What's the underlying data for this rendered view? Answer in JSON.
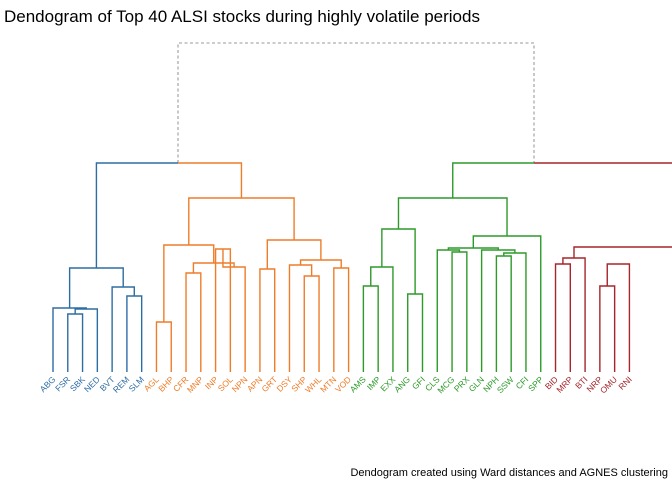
{
  "chart_data": {
    "type": "dendrogram",
    "title": "Dendogram of Top 40 ALSI stocks during highly volatile periods",
    "caption": "Dendogram created using Ward distances and AGNES clustering",
    "clusters": [
      {
        "color": "#2e6da4"
      },
      {
        "color": "#ee7d2a"
      },
      {
        "color": "#2e9a2a"
      },
      {
        "color": "#a5262b"
      }
    ],
    "root_color": "#9a9a9a",
    "leaves": [
      {
        "label": "ABG",
        "cluster": 0
      },
      {
        "label": "FSR",
        "cluster": 0
      },
      {
        "label": "SBK",
        "cluster": 0
      },
      {
        "label": "NED",
        "cluster": 0
      },
      {
        "label": "BVT",
        "cluster": 0
      },
      {
        "label": "REM",
        "cluster": 0
      },
      {
        "label": "SLM",
        "cluster": 0
      },
      {
        "label": "AGL",
        "cluster": 1
      },
      {
        "label": "BHP",
        "cluster": 1
      },
      {
        "label": "CFR",
        "cluster": 1
      },
      {
        "label": "MNP",
        "cluster": 1
      },
      {
        "label": "INP",
        "cluster": 1
      },
      {
        "label": "SOL",
        "cluster": 1
      },
      {
        "label": "NPN",
        "cluster": 1
      },
      {
        "label": "APN",
        "cluster": 1
      },
      {
        "label": "GRT",
        "cluster": 1
      },
      {
        "label": "DSY",
        "cluster": 1
      },
      {
        "label": "SHP",
        "cluster": 1
      },
      {
        "label": "WHL",
        "cluster": 1
      },
      {
        "label": "MTN",
        "cluster": 1
      },
      {
        "label": "VOD",
        "cluster": 1
      },
      {
        "label": "AMS",
        "cluster": 2
      },
      {
        "label": "IMP",
        "cluster": 2
      },
      {
        "label": "EXX",
        "cluster": 2
      },
      {
        "label": "ANG",
        "cluster": 2
      },
      {
        "label": "GFI",
        "cluster": 2
      },
      {
        "label": "CLS",
        "cluster": 2
      },
      {
        "label": "MCG",
        "cluster": 2
      },
      {
        "label": "PRX",
        "cluster": 2
      },
      {
        "label": "GLN",
        "cluster": 2
      },
      {
        "label": "NPH",
        "cluster": 2
      },
      {
        "label": "SSW",
        "cluster": 2
      },
      {
        "label": "CFI",
        "cluster": 2
      },
      {
        "label": "SPP",
        "cluster": 2
      },
      {
        "label": "BID",
        "cluster": 3
      },
      {
        "label": "MRP",
        "cluster": 3
      },
      {
        "label": "BTI",
        "cluster": 3
      },
      {
        "label": "NRP",
        "cluster": 3
      },
      {
        "label": "OMU",
        "cluster": 3
      },
      {
        "label": "RNI",
        "cluster": 3
      }
    ],
    "merge_heights_relative": {
      "root": 1.0,
      "group_blue_orange": 0.655,
      "group_green_red": 0.655,
      "blue": 0.62,
      "orange": 0.55,
      "green": 0.52,
      "red": 0.36
    }
  }
}
